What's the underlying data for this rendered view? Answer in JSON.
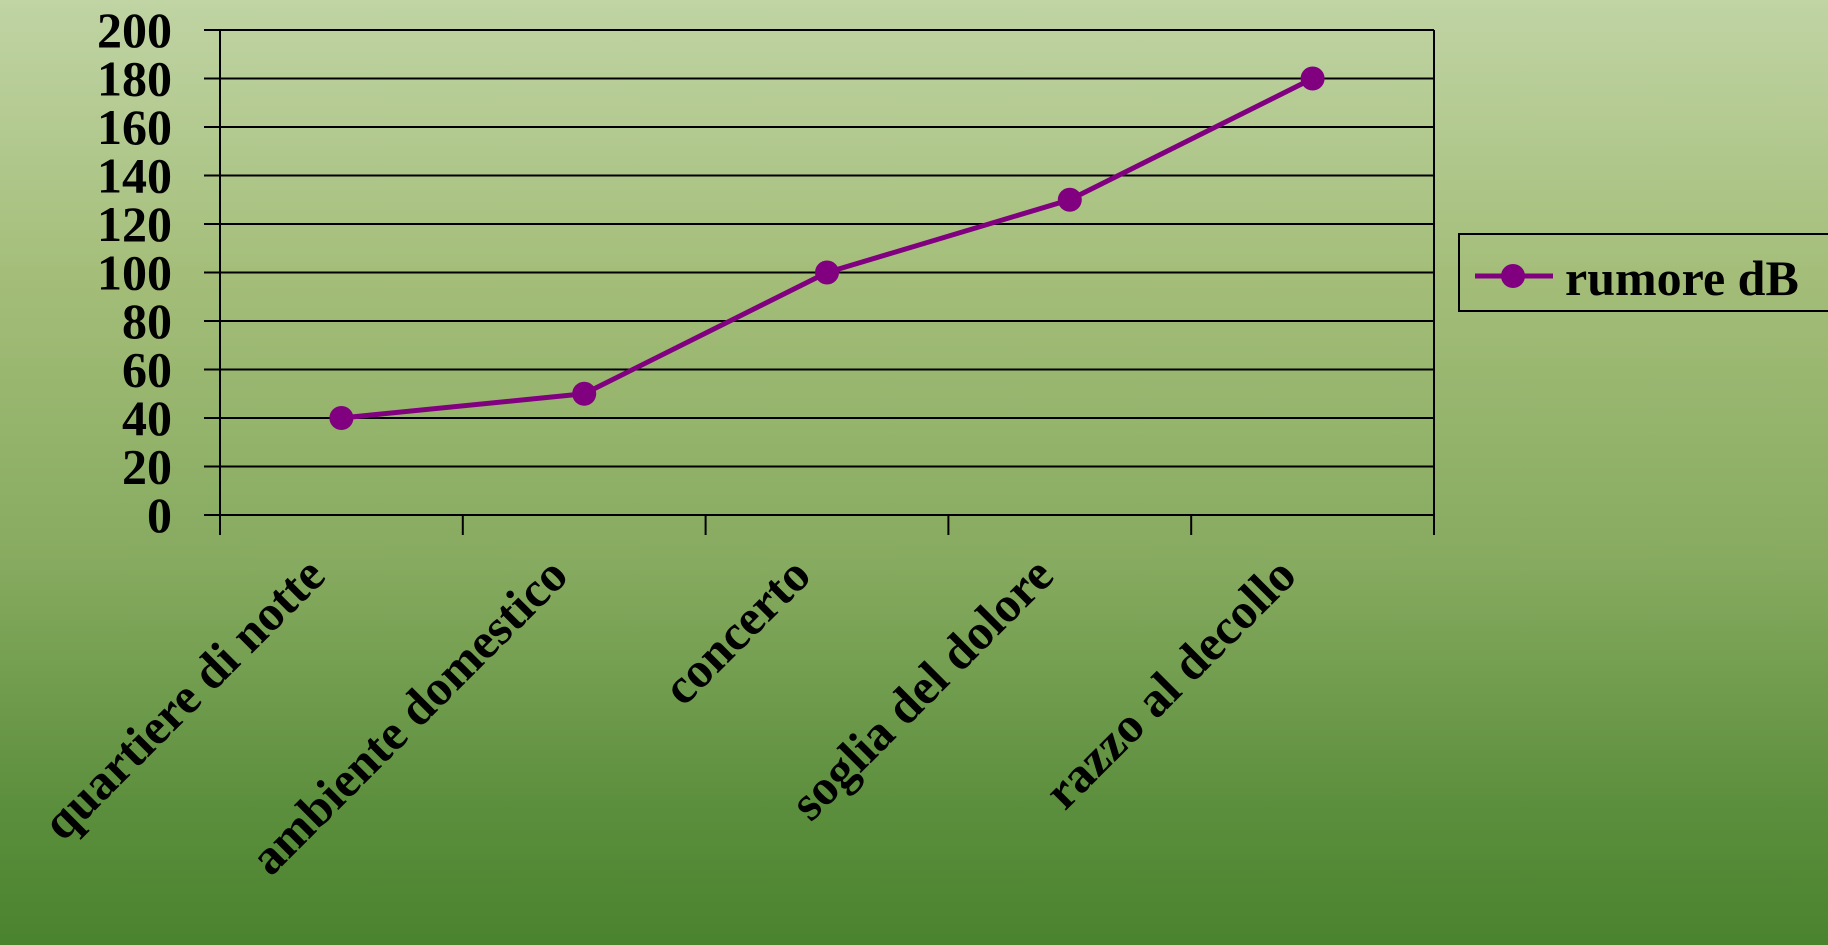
{
  "chart_data": {
    "type": "line",
    "categories": [
      "quartiere di notte",
      "ambiente domestico",
      "concerto",
      "soglia del dolore",
      "razzo al decollo"
    ],
    "series": [
      {
        "name": "rumore dB",
        "values": [
          40,
          50,
          100,
          130,
          180
        ]
      }
    ],
    "yticks": [
      "0",
      "20",
      "40",
      "60",
      "80",
      "100",
      "120",
      "140",
      "160",
      "180",
      "200"
    ],
    "ylim": [
      0,
      200
    ],
    "grid": true,
    "legend_position": "right",
    "colors": {
      "series": "#800080",
      "axis": "#000000",
      "grid": "#000000",
      "legend_border": "#000000"
    }
  }
}
